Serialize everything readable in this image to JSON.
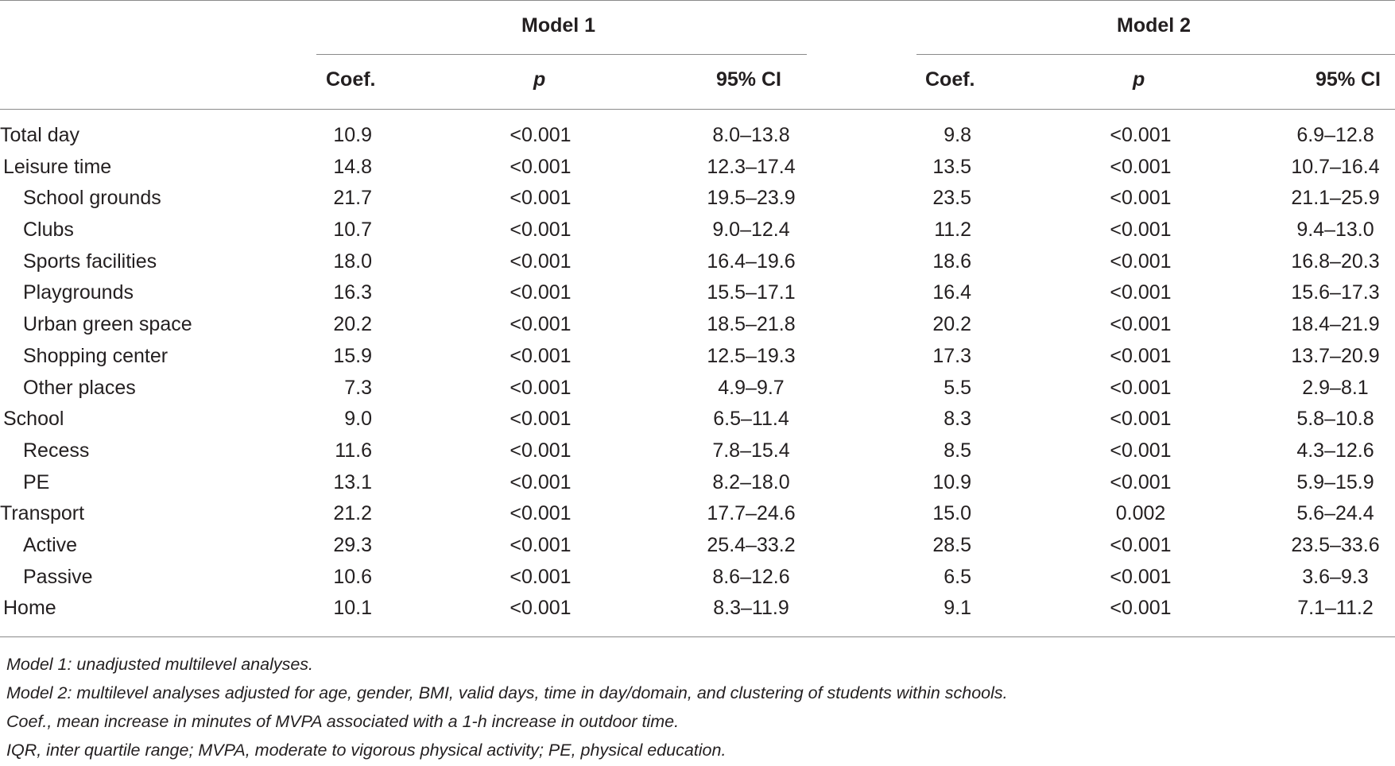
{
  "table": {
    "group_headers": [
      "Model 1",
      "Model 2"
    ],
    "column_headers": [
      "Coef.",
      "p",
      "95% CI",
      "Coef.",
      "p",
      "95% CI"
    ],
    "rows": [
      {
        "label": "Total day",
        "indent": 0,
        "values": [
          "10.9",
          "<0.001",
          "8.0–13.8",
          "9.8",
          "<0.001",
          "6.9–12.8"
        ]
      },
      {
        "label": "Leisure time",
        "indent": 1,
        "values": [
          "14.8",
          "<0.001",
          "12.3–17.4",
          "13.5",
          "<0.001",
          "10.7–16.4"
        ]
      },
      {
        "label": "School grounds",
        "indent": 2,
        "values": [
          "21.7",
          "<0.001",
          "19.5–23.9",
          "23.5",
          "<0.001",
          "21.1–25.9"
        ]
      },
      {
        "label": "Clubs",
        "indent": 2,
        "values": [
          "10.7",
          "<0.001",
          "9.0–12.4",
          "11.2",
          "<0.001",
          "9.4–13.0"
        ]
      },
      {
        "label": "Sports facilities",
        "indent": 2,
        "values": [
          "18.0",
          "<0.001",
          "16.4–19.6",
          "18.6",
          "<0.001",
          "16.8–20.3"
        ]
      },
      {
        "label": "Playgrounds",
        "indent": 2,
        "values": [
          "16.3",
          "<0.001",
          "15.5–17.1",
          "16.4",
          "<0.001",
          "15.6–17.3"
        ]
      },
      {
        "label": "Urban green space",
        "indent": 2,
        "values": [
          "20.2",
          "<0.001",
          "18.5–21.8",
          "20.2",
          "<0.001",
          "18.4–21.9"
        ]
      },
      {
        "label": "Shopping center",
        "indent": 2,
        "values": [
          "15.9",
          "<0.001",
          "12.5–19.3",
          "17.3",
          "<0.001",
          "13.7–20.9"
        ]
      },
      {
        "label": "Other places",
        "indent": 2,
        "values": [
          "7.3",
          "<0.001",
          "4.9–9.7",
          "5.5",
          "<0.001",
          "2.9–8.1"
        ]
      },
      {
        "label": "School",
        "indent": 1,
        "values": [
          "9.0",
          "<0.001",
          "6.5–11.4",
          "8.3",
          "<0.001",
          "5.8–10.8"
        ]
      },
      {
        "label": "Recess",
        "indent": 2,
        "values": [
          "11.6",
          "<0.001",
          "7.8–15.4",
          "8.5",
          "<0.001",
          "4.3–12.6"
        ]
      },
      {
        "label": "PE",
        "indent": 2,
        "values": [
          "13.1",
          "<0.001",
          "8.2–18.0",
          "10.9",
          "<0.001",
          "5.9–15.9"
        ]
      },
      {
        "label": "Transport",
        "indent": 0,
        "values": [
          "21.2",
          "<0.001",
          "17.7–24.6",
          "15.0",
          "0.002",
          "5.6–24.4"
        ]
      },
      {
        "label": "Active",
        "indent": 2,
        "values": [
          "29.3",
          "<0.001",
          "25.4–33.2",
          "28.5",
          "<0.001",
          "23.5–33.6"
        ]
      },
      {
        "label": "Passive",
        "indent": 2,
        "values": [
          "10.6",
          "<0.001",
          "8.6–12.6",
          "6.5",
          "<0.001",
          "3.6–9.3"
        ]
      },
      {
        "label": "Home",
        "indent": 1,
        "values": [
          "10.1",
          "<0.001",
          "8.3–11.9",
          "9.1",
          "<0.001",
          "7.1–11.2"
        ]
      }
    ]
  },
  "footnotes": [
    "Model 1: unadjusted multilevel analyses.",
    "Model 2: multilevel analyses adjusted for age, gender, BMI, valid days, time in day/domain, and clustering of students within schools.",
    "Coef., mean increase in minutes of MVPA associated with a 1-h increase in outdoor time.",
    "IQR, inter quartile range; MVPA, moderate to vigorous physical activity; PE, physical education."
  ]
}
